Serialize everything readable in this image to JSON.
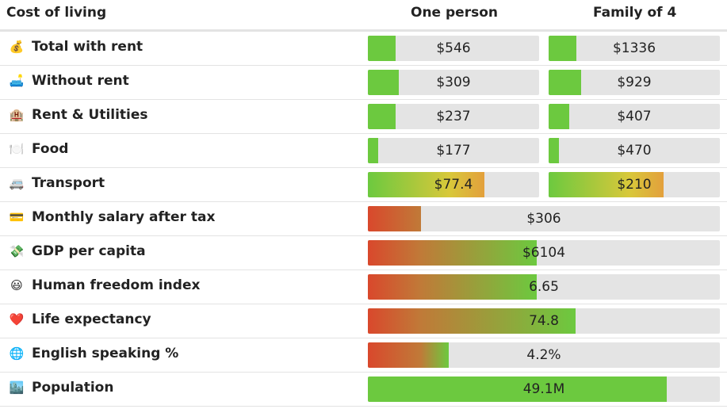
{
  "header": {
    "title": "Cost of living",
    "col1": "One person",
    "col2": "Family of 4"
  },
  "colors": {
    "green": "#6cc93f",
    "yellow": "#d8c83a",
    "orange": "#e3a03c",
    "red": "#d9482c",
    "track": "#e4e4e4"
  },
  "rows": [
    {
      "icon": "money-bag",
      "emoji": "💰",
      "label": "Total with rent",
      "one": {
        "value": "$546",
        "fill": 0.16,
        "scale": "green"
      },
      "family": {
        "value": "$1336",
        "fill": 0.16,
        "scale": "green"
      }
    },
    {
      "icon": "couch-and-lamp",
      "emoji": "🛋️",
      "label": "Without rent",
      "one": {
        "value": "$309",
        "fill": 0.18,
        "scale": "green"
      },
      "family": {
        "value": "$929",
        "fill": 0.19,
        "scale": "green"
      }
    },
    {
      "icon": "hotel",
      "emoji": "🏨",
      "label": "Rent & Utilities",
      "one": {
        "value": "$237",
        "fill": 0.16,
        "scale": "green"
      },
      "family": {
        "value": "$407",
        "fill": 0.12,
        "scale": "green"
      }
    },
    {
      "icon": "plate",
      "emoji": "🍽️",
      "label": "Food",
      "one": {
        "value": "$177",
        "fill": 0.06,
        "scale": "green"
      },
      "family": {
        "value": "$470",
        "fill": 0.06,
        "scale": "green"
      }
    },
    {
      "icon": "minibus",
      "emoji": "🚐",
      "label": "Transport",
      "one": {
        "value": "$77.4",
        "fill": 0.68,
        "scale": "green-orange"
      },
      "family": {
        "value": "$210",
        "fill": 0.67,
        "scale": "green-orange"
      }
    },
    {
      "icon": "credit-card",
      "emoji": "💳",
      "label": "Monthly salary after tax",
      "full": {
        "value": "$306",
        "fill": 0.15,
        "scale": "red-green"
      }
    },
    {
      "icon": "money-wings",
      "emoji": "💸",
      "label": "GDP per capita",
      "full": {
        "value": "$6104",
        "fill": 0.48,
        "scale": "red-green"
      }
    },
    {
      "icon": "grinning-face",
      "emoji": "😃",
      "label": "Human freedom index",
      "full": {
        "value": "6.65",
        "fill": 0.48,
        "scale": "red-green"
      }
    },
    {
      "icon": "heart",
      "emoji": "❤️",
      "label": "Life expectancy",
      "full": {
        "value": "74.8",
        "fill": 0.59,
        "scale": "red-green"
      }
    },
    {
      "icon": "globe",
      "emoji": "🌐",
      "label": "English speaking %",
      "full": {
        "value": "4.2%",
        "fill": 0.23,
        "scale": "red-green"
      }
    },
    {
      "icon": "cityscape",
      "emoji": "🏙️",
      "label": "Population",
      "full": {
        "value": "49.1M",
        "fill": 0.85,
        "scale": "solid-green"
      }
    }
  ]
}
